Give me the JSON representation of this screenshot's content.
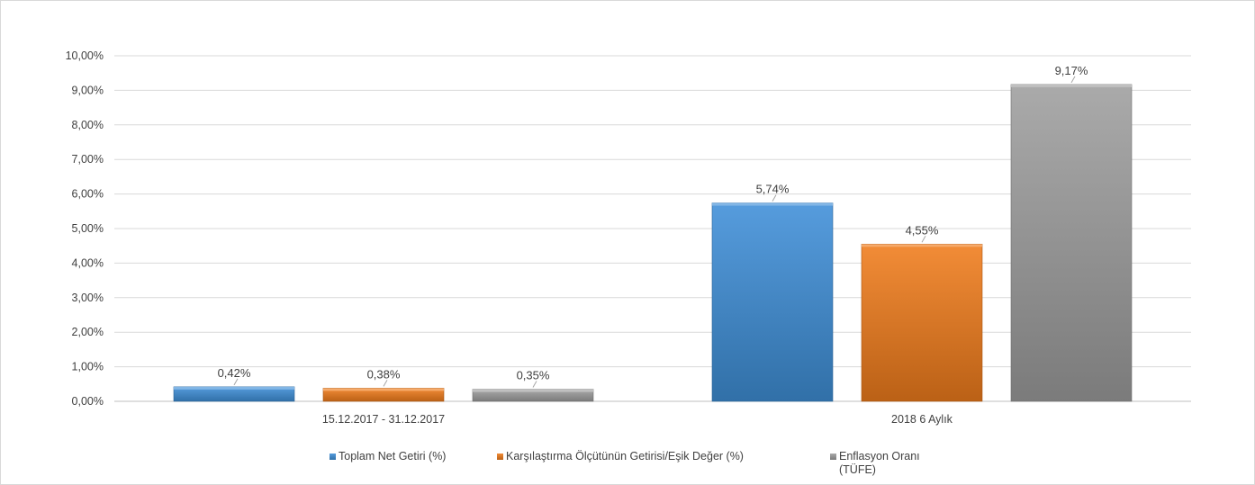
{
  "chart_data": {
    "type": "bar",
    "title": "",
    "xlabel": "",
    "ylabel": "",
    "categories": [
      "15.12.2017 - 31.12.2017",
      "2018 6 Aylık"
    ],
    "series": [
      {
        "name": "Toplam Net Getiri (%)",
        "values": [
          0.42,
          5.74
        ],
        "labels": [
          "0,42%",
          "5,74%"
        ],
        "color": "#3f8fd8"
      },
      {
        "name": "Karşılaştırma Ölçütünün Getirisi/Eşik Değer (%)",
        "values": [
          0.38,
          4.55
        ],
        "labels": [
          "0,38%",
          "4,55%"
        ],
        "color": "#f07c1c"
      },
      {
        "name": "Enflasyon Oranı (TÜFE)",
        "legend_lines": [
          "Enflasyon Oranı",
          "(TÜFE)"
        ],
        "values": [
          0.35,
          9.17
        ],
        "labels": [
          "0,35%",
          "9,17%"
        ],
        "color": "#9e9e9e"
      }
    ],
    "ylim": [
      0,
      10
    ],
    "yticks": [
      0,
      1,
      2,
      3,
      4,
      5,
      6,
      7,
      8,
      9,
      10
    ],
    "ytick_labels": [
      "0,00%",
      "1,00%",
      "2,00%",
      "3,00%",
      "4,00%",
      "5,00%",
      "6,00%",
      "7,00%",
      "8,00%",
      "9,00%",
      "10,00%"
    ],
    "grid": true,
    "legend_position": "bottom"
  }
}
